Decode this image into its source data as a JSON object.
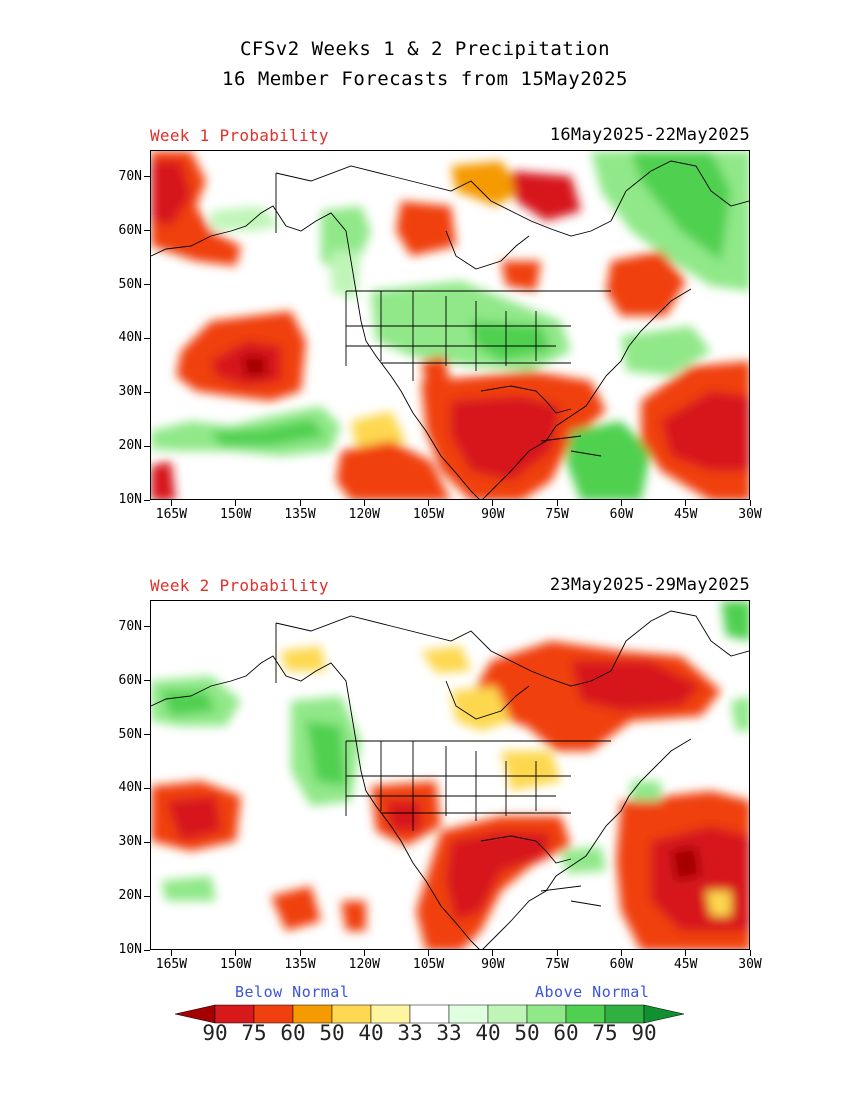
{
  "header": {
    "title_line1": "CFSv2 Weeks 1 & 2 Precipitation",
    "title_line2": "16 Member Forecasts from 15May2025"
  },
  "panels": [
    {
      "label": "Week 1 Probability",
      "dates": "16May2025-22May2025"
    },
    {
      "label": "Week 2 Probability",
      "dates": "23May2025-29May2025"
    }
  ],
  "axes": {
    "lat_labels": [
      "70N",
      "60N",
      "50N",
      "40N",
      "30N",
      "20N",
      "10N"
    ],
    "lat_values": [
      70,
      60,
      50,
      40,
      30,
      20,
      10
    ],
    "lon_labels": [
      "165W",
      "150W",
      "135W",
      "120W",
      "105W",
      "90W",
      "75W",
      "60W",
      "45W",
      "30W"
    ],
    "lon_values": [
      -165,
      -150,
      -135,
      -120,
      -105,
      -90,
      -75,
      -60,
      -45,
      -30
    ],
    "lon_range": [
      -170,
      -30
    ],
    "lat_range": [
      10,
      75
    ]
  },
  "legend": {
    "below_label": "Below Normal",
    "above_label": "Above Normal",
    "labels": [
      "90",
      "75",
      "60",
      "50",
      "40",
      "33",
      "33",
      "40",
      "50",
      "60",
      "75",
      "90"
    ],
    "colors": [
      "#a50000",
      "#d7191c",
      "#f04010",
      "#f59a00",
      "#fdd850",
      "#fff4a0",
      "#ffffff",
      "#e0ffe0",
      "#c0f5b8",
      "#90e888",
      "#50d050",
      "#30b040",
      "#109030"
    ]
  }
}
